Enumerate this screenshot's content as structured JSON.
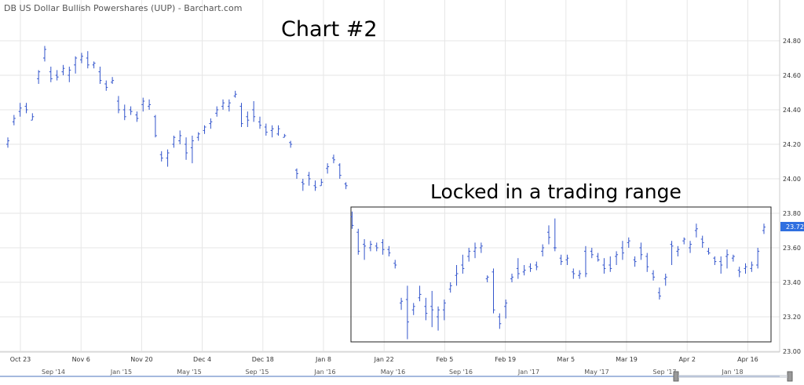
{
  "source_label": "DB US Dollar Bullish Powershares (UUP) - Barchart.com",
  "annotation_chart": "Chart #2",
  "annotation_range": "Locked in a trading range",
  "last_price_badge": "23.72",
  "colors": {
    "bar": "#3355cc",
    "grid": "#e6e6e6",
    "badge": "#2f6fe0",
    "navigator": "#6f8fc9"
  },
  "chart_data": {
    "type": "ohlc",
    "ylim": [
      23.0,
      25.0
    ],
    "y_ticks": [
      "24.80",
      "24.60",
      "24.40",
      "24.20",
      "24.00",
      "23.80",
      "23.60",
      "23.40",
      "23.20",
      "23.00"
    ],
    "x_ticks": [
      "Oct 23",
      "Nov 6",
      "Nov 20",
      "Dec 4",
      "Dec 18",
      "Jan 8",
      "Jan 22",
      "Feb 5",
      "Feb 19",
      "Mar 5",
      "Mar 19",
      "Apr 2",
      "Apr 16"
    ],
    "navigator_labels": [
      "Sep '14",
      "Jan '15",
      "May '15",
      "Sep '15",
      "Jan '16",
      "May '16",
      "Sep '16",
      "Jan '17",
      "May '17",
      "Sep '17",
      "Jan '18"
    ],
    "bars": [
      {
        "o": 24.2,
        "h": 24.24,
        "l": 24.18,
        "c": 24.22
      },
      {
        "o": 24.33,
        "h": 24.37,
        "l": 24.31,
        "c": 24.35
      },
      {
        "o": 24.39,
        "h": 24.44,
        "l": 24.36,
        "c": 24.41
      },
      {
        "o": 24.42,
        "h": 24.44,
        "l": 24.38,
        "c": 24.4
      },
      {
        "o": 24.34,
        "h": 24.38,
        "l": 24.34,
        "c": 24.36
      },
      {
        "o": 24.58,
        "h": 24.63,
        "l": 24.55,
        "c": 24.62
      },
      {
        "o": 24.7,
        "h": 24.77,
        "l": 24.68,
        "c": 24.75
      },
      {
        "o": 24.62,
        "h": 24.65,
        "l": 24.56,
        "c": 24.58
      },
      {
        "o": 24.6,
        "h": 24.63,
        "l": 24.57,
        "c": 24.59
      },
      {
        "o": 24.62,
        "h": 24.66,
        "l": 24.6,
        "c": 24.64
      },
      {
        "o": 24.6,
        "h": 24.65,
        "l": 24.56,
        "c": 24.63
      },
      {
        "o": 24.66,
        "h": 24.71,
        "l": 24.61,
        "c": 24.7
      },
      {
        "o": 24.69,
        "h": 24.73,
        "l": 24.67,
        "c": 24.71
      },
      {
        "o": 24.7,
        "h": 24.74,
        "l": 24.64,
        "c": 24.66
      },
      {
        "o": 24.66,
        "h": 24.68,
        "l": 24.64,
        "c": 24.67
      },
      {
        "o": 24.62,
        "h": 24.65,
        "l": 24.55,
        "c": 24.57
      },
      {
        "o": 24.55,
        "h": 24.57,
        "l": 24.51,
        "c": 24.53
      },
      {
        "o": 24.56,
        "h": 24.59,
        "l": 24.55,
        "c": 24.57
      },
      {
        "o": 24.45,
        "h": 24.48,
        "l": 24.38,
        "c": 24.4
      },
      {
        "o": 24.4,
        "h": 24.43,
        "l": 24.34,
        "c": 24.36
      },
      {
        "o": 24.4,
        "h": 24.42,
        "l": 24.37,
        "c": 24.39
      },
      {
        "o": 24.37,
        "h": 24.39,
        "l": 24.33,
        "c": 24.35
      },
      {
        "o": 24.43,
        "h": 24.47,
        "l": 24.39,
        "c": 24.45
      },
      {
        "o": 24.42,
        "h": 24.46,
        "l": 24.4,
        "c": 24.43
      },
      {
        "o": 24.36,
        "h": 24.37,
        "l": 24.24,
        "c": 24.25
      },
      {
        "o": 24.14,
        "h": 24.16,
        "l": 24.1,
        "c": 24.12
      },
      {
        "o": 24.12,
        "h": 24.17,
        "l": 24.07,
        "c": 24.15
      },
      {
        "o": 24.2,
        "h": 24.25,
        "l": 24.18,
        "c": 24.24
      },
      {
        "o": 24.22,
        "h": 24.28,
        "l": 24.2,
        "c": 24.25
      },
      {
        "o": 24.2,
        "h": 24.24,
        "l": 24.11,
        "c": 24.15
      },
      {
        "o": 24.18,
        "h": 24.25,
        "l": 24.09,
        "c": 24.22
      },
      {
        "o": 24.24,
        "h": 24.27,
        "l": 24.22,
        "c": 24.26
      },
      {
        "o": 24.28,
        "h": 24.31,
        "l": 24.26,
        "c": 24.3
      },
      {
        "o": 24.32,
        "h": 24.35,
        "l": 24.29,
        "c": 24.33
      },
      {
        "o": 24.38,
        "h": 24.42,
        "l": 24.36,
        "c": 24.4
      },
      {
        "o": 24.42,
        "h": 24.46,
        "l": 24.4,
        "c": 24.44
      },
      {
        "o": 24.42,
        "h": 24.46,
        "l": 24.39,
        "c": 24.44
      },
      {
        "o": 24.48,
        "h": 24.51,
        "l": 24.47,
        "c": 24.49
      },
      {
        "o": 24.42,
        "h": 24.44,
        "l": 24.3,
        "c": 24.32
      },
      {
        "o": 24.36,
        "h": 24.39,
        "l": 24.3,
        "c": 24.34
      },
      {
        "o": 24.4,
        "h": 24.45,
        "l": 24.33,
        "c": 24.36
      },
      {
        "o": 24.33,
        "h": 24.36,
        "l": 24.29,
        "c": 24.31
      },
      {
        "o": 24.3,
        "h": 24.32,
        "l": 24.25,
        "c": 24.27
      },
      {
        "o": 24.28,
        "h": 24.31,
        "l": 24.24,
        "c": 24.29
      },
      {
        "o": 24.26,
        "h": 24.31,
        "l": 24.25,
        "c": 24.29
      },
      {
        "o": 24.24,
        "h": 24.26,
        "l": 24.24,
        "c": 24.25
      },
      {
        "o": 24.21,
        "h": 24.22,
        "l": 24.18,
        "c": 24.2
      },
      {
        "o": 24.05,
        "h": 24.06,
        "l": 24.0,
        "c": 24.03
      },
      {
        "o": 23.98,
        "h": 24.0,
        "l": 23.93,
        "c": 23.97
      },
      {
        "o": 24.02,
        "h": 24.04,
        "l": 23.96,
        "c": 24.0
      },
      {
        "o": 23.96,
        "h": 23.99,
        "l": 23.93,
        "c": 23.95
      },
      {
        "o": 23.96,
        "h": 24.0,
        "l": 23.96,
        "c": 23.98
      },
      {
        "o": 24.06,
        "h": 24.09,
        "l": 24.03,
        "c": 24.07
      },
      {
        "o": 24.12,
        "h": 24.14,
        "l": 24.09,
        "c": 24.11
      },
      {
        "o": 24.08,
        "h": 24.09,
        "l": 24.0,
        "c": 24.02
      },
      {
        "o": 23.97,
        "h": 23.98,
        "l": 23.94,
        "c": 23.96
      },
      {
        "o": 23.78,
        "h": 23.81,
        "l": 23.71,
        "c": 23.73
      },
      {
        "o": 23.69,
        "h": 23.71,
        "l": 23.56,
        "c": 23.58
      },
      {
        "o": 23.62,
        "h": 23.65,
        "l": 23.53,
        "c": 23.61
      },
      {
        "o": 23.6,
        "h": 23.64,
        "l": 23.58,
        "c": 23.62
      },
      {
        "o": 23.61,
        "h": 23.63,
        "l": 23.58,
        "c": 23.6
      },
      {
        "o": 23.63,
        "h": 23.65,
        "l": 23.56,
        "c": 23.59
      },
      {
        "o": 23.59,
        "h": 23.61,
        "l": 23.55,
        "c": 23.57
      },
      {
        "o": 23.51,
        "h": 23.53,
        "l": 23.48,
        "c": 23.5
      },
      {
        "o": 23.28,
        "h": 23.31,
        "l": 23.24,
        "c": 23.29
      },
      {
        "o": 23.3,
        "h": 23.38,
        "l": 23.07,
        "c": 23.17
      },
      {
        "o": 23.24,
        "h": 23.28,
        "l": 23.21,
        "c": 23.26
      },
      {
        "o": 23.31,
        "h": 23.38,
        "l": 23.29,
        "c": 23.33
      },
      {
        "o": 23.26,
        "h": 23.31,
        "l": 23.18,
        "c": 23.22
      },
      {
        "o": 23.26,
        "h": 23.35,
        "l": 23.14,
        "c": 23.24
      },
      {
        "o": 23.2,
        "h": 23.26,
        "l": 23.12,
        "c": 23.24
      },
      {
        "o": 23.24,
        "h": 23.3,
        "l": 23.18,
        "c": 23.28
      },
      {
        "o": 23.36,
        "h": 23.4,
        "l": 23.34,
        "c": 23.38
      },
      {
        "o": 23.44,
        "h": 23.5,
        "l": 23.38,
        "c": 23.45
      },
      {
        "o": 23.5,
        "h": 23.56,
        "l": 23.45,
        "c": 23.48
      },
      {
        "o": 23.55,
        "h": 23.6,
        "l": 23.52,
        "c": 23.58
      },
      {
        "o": 23.58,
        "h": 23.63,
        "l": 23.54,
        "c": 23.6
      },
      {
        "o": 23.6,
        "h": 23.63,
        "l": 23.57,
        "c": 23.61
      },
      {
        "o": 23.42,
        "h": 23.44,
        "l": 23.4,
        "c": 23.43
      },
      {
        "o": 23.46,
        "h": 23.48,
        "l": 23.22,
        "c": 23.24
      },
      {
        "o": 23.2,
        "h": 23.22,
        "l": 23.13,
        "c": 23.16
      },
      {
        "o": 23.26,
        "h": 23.3,
        "l": 23.19,
        "c": 23.28
      },
      {
        "o": 23.42,
        "h": 23.45,
        "l": 23.4,
        "c": 23.43
      },
      {
        "o": 23.48,
        "h": 23.54,
        "l": 23.42,
        "c": 23.45
      },
      {
        "o": 23.46,
        "h": 23.5,
        "l": 23.44,
        "c": 23.47
      },
      {
        "o": 23.49,
        "h": 23.51,
        "l": 23.46,
        "c": 23.48
      },
      {
        "o": 23.5,
        "h": 23.52,
        "l": 23.47,
        "c": 23.49
      },
      {
        "o": 23.58,
        "h": 23.62,
        "l": 23.55,
        "c": 23.6
      },
      {
        "o": 23.69,
        "h": 23.73,
        "l": 23.62,
        "c": 23.66
      },
      {
        "o": 23.6,
        "h": 23.77,
        "l": 23.58,
        "c": 23.6
      },
      {
        "o": 23.54,
        "h": 23.56,
        "l": 23.5,
        "c": 23.52
      },
      {
        "o": 23.53,
        "h": 23.56,
        "l": 23.5,
        "c": 23.54
      },
      {
        "o": 23.46,
        "h": 23.48,
        "l": 23.42,
        "c": 23.45
      },
      {
        "o": 23.44,
        "h": 23.47,
        "l": 23.42,
        "c": 23.45
      },
      {
        "o": 23.58,
        "h": 23.61,
        "l": 23.43,
        "c": 23.45
      },
      {
        "o": 23.58,
        "h": 23.6,
        "l": 23.54,
        "c": 23.56
      },
      {
        "o": 23.55,
        "h": 23.57,
        "l": 23.52,
        "c": 23.53
      },
      {
        "o": 23.5,
        "h": 23.54,
        "l": 23.45,
        "c": 23.48
      },
      {
        "o": 23.5,
        "h": 23.55,
        "l": 23.46,
        "c": 23.48
      },
      {
        "o": 23.55,
        "h": 23.58,
        "l": 23.5,
        "c": 23.56
      },
      {
        "o": 23.6,
        "h": 23.64,
        "l": 23.53,
        "c": 23.57
      },
      {
        "o": 23.63,
        "h": 23.66,
        "l": 23.6,
        "c": 23.64
      },
      {
        "o": 23.53,
        "h": 23.55,
        "l": 23.49,
        "c": 23.52
      },
      {
        "o": 23.6,
        "h": 23.63,
        "l": 23.53,
        "c": 23.56
      },
      {
        "o": 23.55,
        "h": 23.57,
        "l": 23.46,
        "c": 23.49
      },
      {
        "o": 23.45,
        "h": 23.47,
        "l": 23.41,
        "c": 23.43
      },
      {
        "o": 23.34,
        "h": 23.37,
        "l": 23.3,
        "c": 23.32
      },
      {
        "o": 23.42,
        "h": 23.45,
        "l": 23.38,
        "c": 23.43
      },
      {
        "o": 23.62,
        "h": 23.64,
        "l": 23.5,
        "c": 23.61
      },
      {
        "o": 23.58,
        "h": 23.61,
        "l": 23.55,
        "c": 23.59
      },
      {
        "o": 23.64,
        "h": 23.66,
        "l": 23.62,
        "c": 23.65
      },
      {
        "o": 23.6,
        "h": 23.64,
        "l": 23.57,
        "c": 23.62
      },
      {
        "o": 23.7,
        "h": 23.74,
        "l": 23.66,
        "c": 23.71
      },
      {
        "o": 23.65,
        "h": 23.67,
        "l": 23.6,
        "c": 23.63
      },
      {
        "o": 23.58,
        "h": 23.6,
        "l": 23.56,
        "c": 23.57
      },
      {
        "o": 23.54,
        "h": 23.55,
        "l": 23.5,
        "c": 23.52
      },
      {
        "o": 23.52,
        "h": 23.55,
        "l": 23.45,
        "c": 23.5
      },
      {
        "o": 23.55,
        "h": 23.59,
        "l": 23.48,
        "c": 23.56
      },
      {
        "o": 23.54,
        "h": 23.56,
        "l": 23.52,
        "c": 23.55
      },
      {
        "o": 23.47,
        "h": 23.49,
        "l": 23.43,
        "c": 23.46
      },
      {
        "o": 23.48,
        "h": 23.51,
        "l": 23.45,
        "c": 23.49
      },
      {
        "o": 23.48,
        "h": 23.52,
        "l": 23.46,
        "c": 23.5
      },
      {
        "o": 23.5,
        "h": 23.6,
        "l": 23.48,
        "c": 23.58
      },
      {
        "o": 23.7,
        "h": 23.74,
        "l": 23.68,
        "c": 23.72
      }
    ]
  }
}
